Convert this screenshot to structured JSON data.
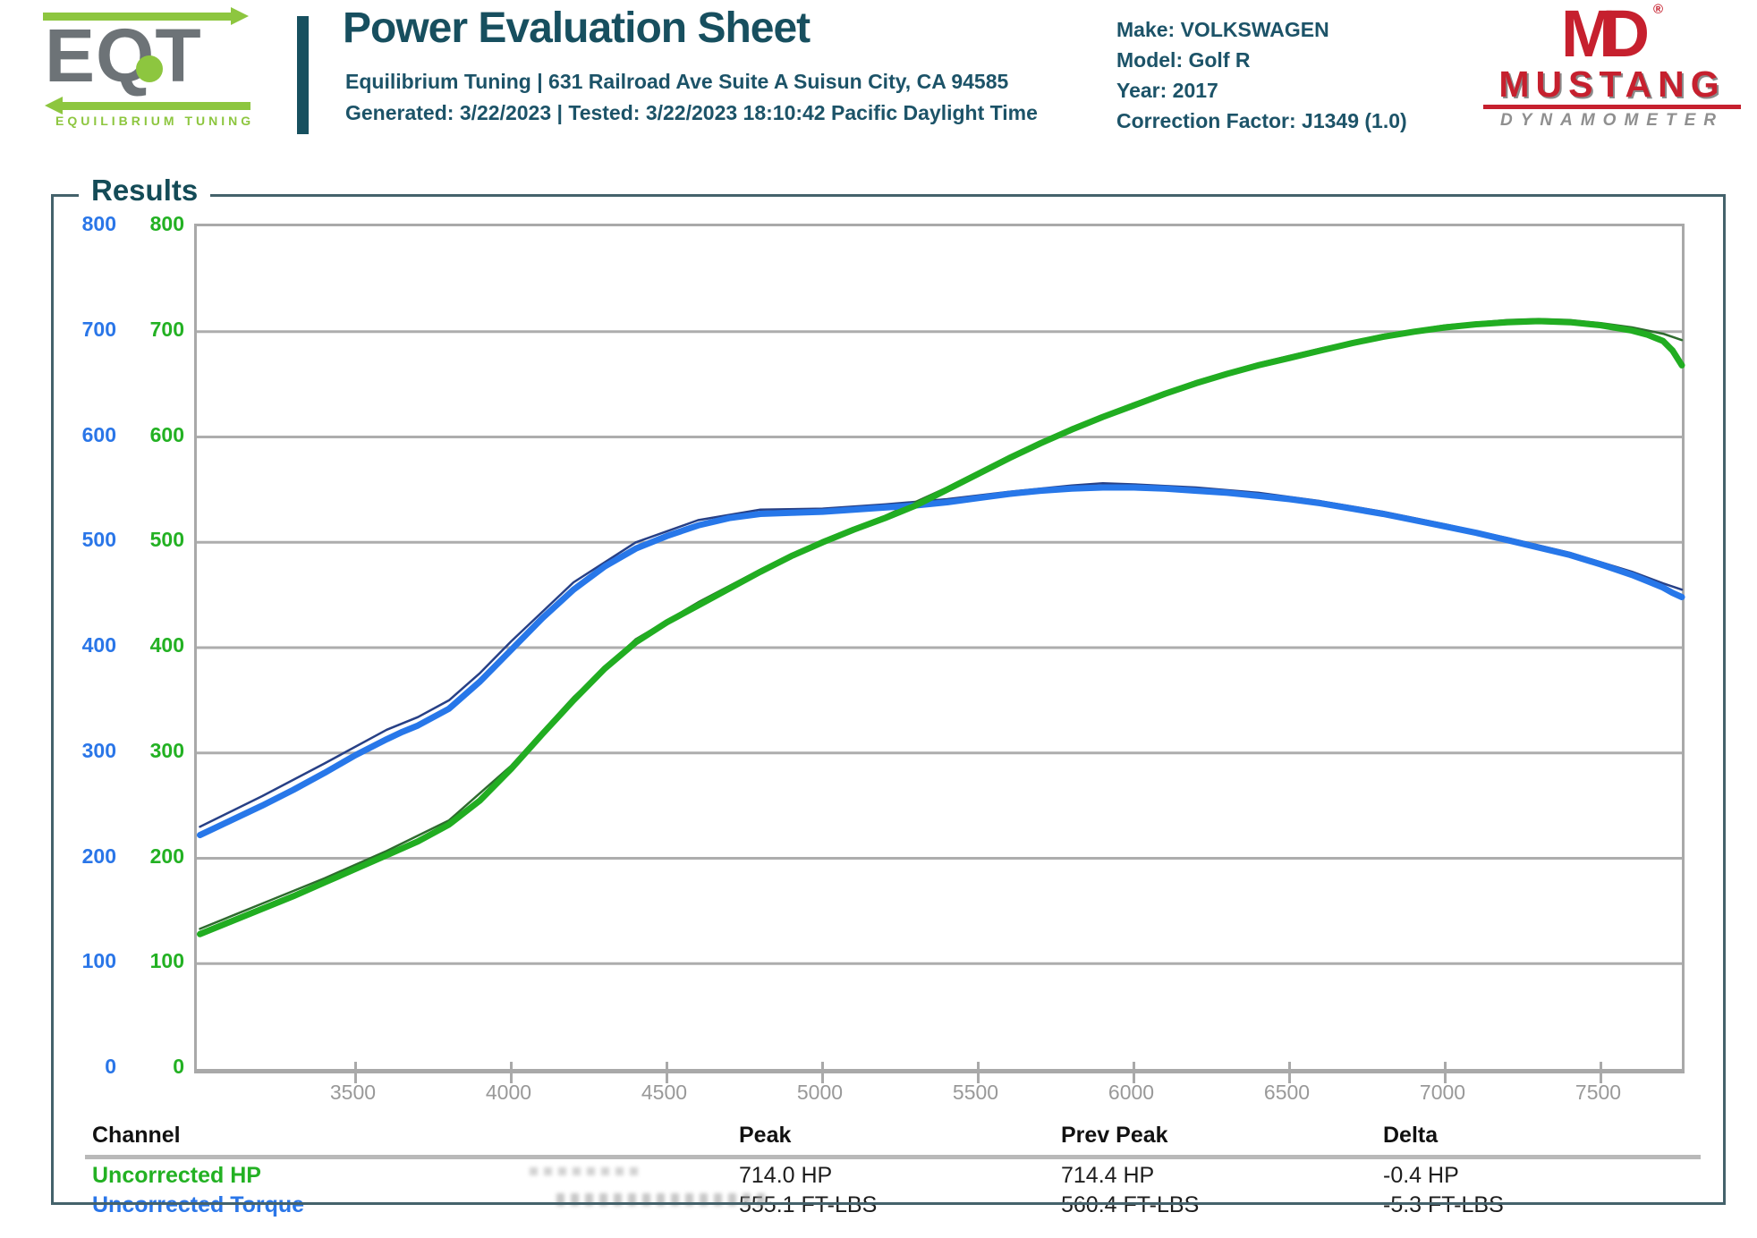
{
  "header": {
    "logo": {
      "name": "EQT",
      "tagline": "EQUILIBRIUM TUNING"
    },
    "title": "Power Evaluation Sheet",
    "address_line": "Equilibrium Tuning | 631 Railroad Ave Suite A Suisun City, CA 94585",
    "generated_line": "Generated: 3/22/2023 | Tested: 3/22/2023 18:10:42 Pacific Daylight Time",
    "vehicle_lines": [
      "Make: VOLKSWAGEN",
      "Model: Golf R",
      "Year: 2017",
      "Correction Factor: J1349 (1.0)"
    ],
    "dyno_logo": {
      "monogram": "MD",
      "registered": "®",
      "name": "MUSTANG",
      "subname": "DYNAMOMETER"
    }
  },
  "results": {
    "legend": "Results"
  },
  "colors": {
    "accent_teal": "#17505f",
    "hp_green": "#21ad21",
    "torque_blue": "#2777e9",
    "grid_gray": "#adadad",
    "tick_label_gray": "#999999",
    "logo_red": "#c6202e"
  },
  "chart_data": {
    "type": "line",
    "title": "Results",
    "xlabel": "",
    "ylabel": "",
    "x_range": [
      2990,
      7760
    ],
    "y_range": [
      0,
      800
    ],
    "x_ticks": [
      3500,
      4000,
      4500,
      5000,
      5500,
      6000,
      6500,
      7000,
      7500
    ],
    "y_ticks": [
      0,
      100,
      200,
      300,
      400,
      500,
      600,
      700,
      800
    ],
    "grid": "horizontal",
    "legend_position": "none",
    "y_axis_columns": [
      {
        "name": "torque",
        "color": "#2a76e8"
      },
      {
        "name": "hp",
        "color": "#23b123"
      }
    ],
    "series": [
      {
        "name": "uncorrected-torque-previous",
        "color": "#274086",
        "width": 2.5,
        "points": [
          [
            3000,
            230
          ],
          [
            3200,
            259
          ],
          [
            3400,
            290
          ],
          [
            3600,
            322
          ],
          [
            3700,
            334
          ],
          [
            3800,
            350
          ],
          [
            3900,
            376
          ],
          [
            4000,
            406
          ],
          [
            4200,
            462
          ],
          [
            4400,
            500
          ],
          [
            4600,
            521
          ],
          [
            4800,
            531
          ],
          [
            5000,
            532
          ],
          [
            5200,
            536
          ],
          [
            5400,
            541
          ],
          [
            5600,
            548
          ],
          [
            5800,
            554
          ],
          [
            5900,
            556
          ],
          [
            6000,
            555
          ],
          [
            6200,
            552
          ],
          [
            6400,
            547
          ],
          [
            6600,
            539
          ],
          [
            6800,
            529
          ],
          [
            7000,
            517
          ],
          [
            7200,
            504
          ],
          [
            7400,
            490
          ],
          [
            7600,
            472
          ],
          [
            7700,
            461
          ],
          [
            7760,
            455
          ]
        ]
      },
      {
        "name": "uncorrected-hp-previous",
        "color": "#2e6b2e",
        "width": 2.5,
        "points": [
          [
            3000,
            133
          ],
          [
            3200,
            157
          ],
          [
            3400,
            181
          ],
          [
            3600,
            207
          ],
          [
            3800,
            236
          ],
          [
            4000,
            288
          ],
          [
            4200,
            353
          ],
          [
            4400,
            408
          ],
          [
            4600,
            443
          ],
          [
            4800,
            474
          ],
          [
            5000,
            502
          ],
          [
            5200,
            525
          ],
          [
            5400,
            552
          ],
          [
            5600,
            582
          ],
          [
            5800,
            609
          ],
          [
            6000,
            632
          ],
          [
            6200,
            653
          ],
          [
            6400,
            670
          ],
          [
            6600,
            684
          ],
          [
            6800,
            697
          ],
          [
            7000,
            706
          ],
          [
            7200,
            711
          ],
          [
            7300,
            712
          ],
          [
            7400,
            711
          ],
          [
            7500,
            708
          ],
          [
            7600,
            704
          ],
          [
            7700,
            698
          ],
          [
            7760,
            692
          ]
        ]
      },
      {
        "name": "uncorrected-torque",
        "color": "#2777e9",
        "width": 7,
        "points": [
          [
            3000,
            222
          ],
          [
            3100,
            236
          ],
          [
            3200,
            250
          ],
          [
            3300,
            265
          ],
          [
            3400,
            281
          ],
          [
            3500,
            298
          ],
          [
            3600,
            313
          ],
          [
            3650,
            320
          ],
          [
            3700,
            326
          ],
          [
            3800,
            342
          ],
          [
            3900,
            368
          ],
          [
            4000,
            398
          ],
          [
            4100,
            428
          ],
          [
            4200,
            455
          ],
          [
            4300,
            477
          ],
          [
            4400,
            494
          ],
          [
            4500,
            506
          ],
          [
            4600,
            516
          ],
          [
            4700,
            523
          ],
          [
            4800,
            527
          ],
          [
            4900,
            528
          ],
          [
            5000,
            529
          ],
          [
            5100,
            531
          ],
          [
            5200,
            533
          ],
          [
            5300,
            535
          ],
          [
            5400,
            538
          ],
          [
            5500,
            542
          ],
          [
            5600,
            546
          ],
          [
            5700,
            549
          ],
          [
            5800,
            551
          ],
          [
            5900,
            552
          ],
          [
            6000,
            552
          ],
          [
            6100,
            551
          ],
          [
            6200,
            549
          ],
          [
            6300,
            547
          ],
          [
            6400,
            544
          ],
          [
            6500,
            541
          ],
          [
            6600,
            537
          ],
          [
            6700,
            532
          ],
          [
            6800,
            527
          ],
          [
            6900,
            521
          ],
          [
            7000,
            515
          ],
          [
            7100,
            509
          ],
          [
            7200,
            502
          ],
          [
            7300,
            495
          ],
          [
            7400,
            488
          ],
          [
            7500,
            479
          ],
          [
            7600,
            469
          ],
          [
            7650,
            463
          ],
          [
            7700,
            457
          ],
          [
            7730,
            452
          ],
          [
            7760,
            448
          ]
        ]
      },
      {
        "name": "uncorrected-hp",
        "color": "#21ad21",
        "width": 7,
        "points": [
          [
            3000,
            128
          ],
          [
            3100,
            140
          ],
          [
            3200,
            152
          ],
          [
            3300,
            164
          ],
          [
            3400,
            177
          ],
          [
            3500,
            190
          ],
          [
            3600,
            203
          ],
          [
            3700,
            216
          ],
          [
            3800,
            232
          ],
          [
            3900,
            255
          ],
          [
            4000,
            285
          ],
          [
            4100,
            318
          ],
          [
            4200,
            350
          ],
          [
            4300,
            380
          ],
          [
            4400,
            405
          ],
          [
            4500,
            424
          ],
          [
            4600,
            440
          ],
          [
            4700,
            456
          ],
          [
            4800,
            472
          ],
          [
            4900,
            487
          ],
          [
            5000,
            500
          ],
          [
            5100,
            512
          ],
          [
            5200,
            523
          ],
          [
            5300,
            535
          ],
          [
            5400,
            550
          ],
          [
            5500,
            565
          ],
          [
            5600,
            580
          ],
          [
            5700,
            594
          ],
          [
            5800,
            607
          ],
          [
            5900,
            619
          ],
          [
            6000,
            630
          ],
          [
            6100,
            641
          ],
          [
            6200,
            651
          ],
          [
            6300,
            660
          ],
          [
            6400,
            668
          ],
          [
            6500,
            675
          ],
          [
            6600,
            682
          ],
          [
            6700,
            689
          ],
          [
            6800,
            695
          ],
          [
            6900,
            700
          ],
          [
            7000,
            704
          ],
          [
            7100,
            707
          ],
          [
            7200,
            709
          ],
          [
            7300,
            710
          ],
          [
            7400,
            709
          ],
          [
            7500,
            706
          ],
          [
            7600,
            701
          ],
          [
            7650,
            697
          ],
          [
            7700,
            691
          ],
          [
            7730,
            682
          ],
          [
            7760,
            668
          ]
        ]
      }
    ]
  },
  "table": {
    "columns": [
      "Channel",
      "Peak",
      "Prev Peak",
      "Delta"
    ],
    "rows": [
      {
        "channel": "Uncorrected HP",
        "peak": "714.0 HP",
        "prev_peak": "714.4 HP",
        "delta": "-0.4 HP"
      },
      {
        "channel": "Uncorrected Torque",
        "peak": "555.1 FT-LBS",
        "prev_peak": "560.4 FT-LBS",
        "delta": "-5.3 FT-LBS"
      }
    ]
  }
}
